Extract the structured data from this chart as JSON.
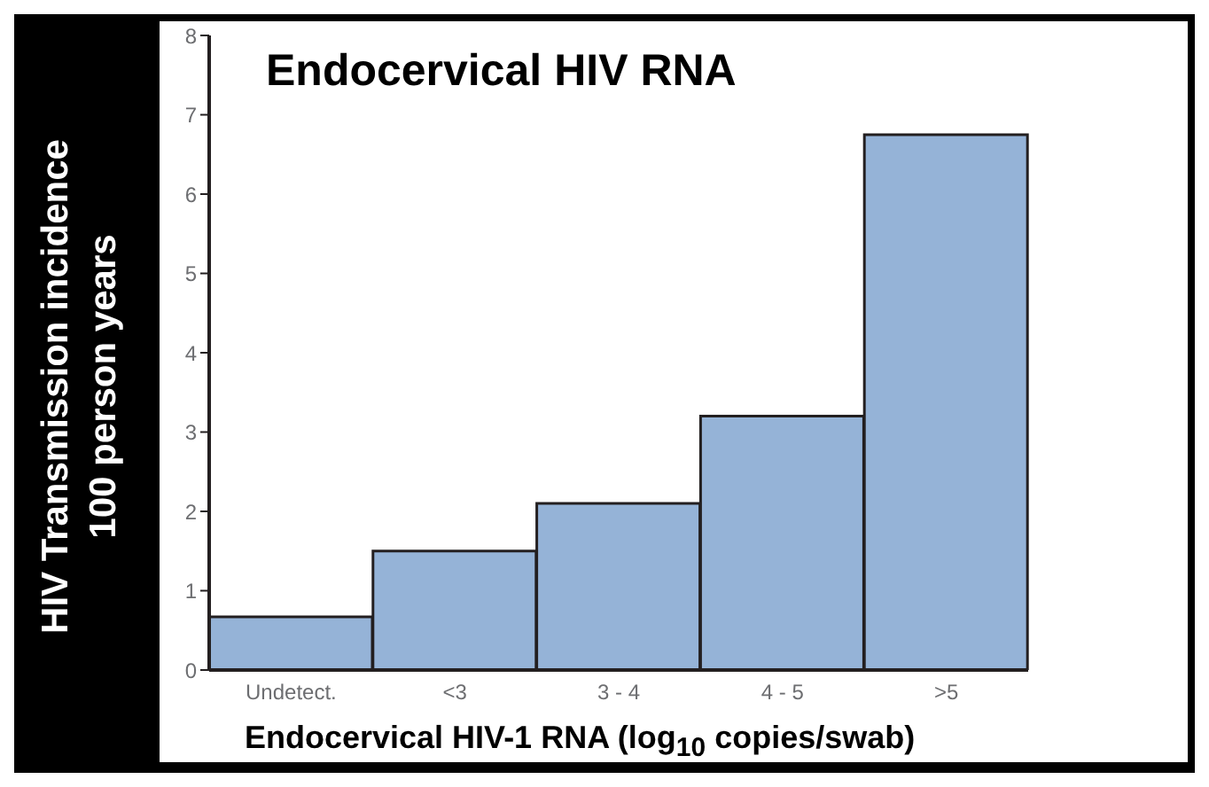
{
  "chart_data": {
    "type": "bar",
    "title": "Endocervical HIV RNA",
    "xlabel": "Endocervical HIV-1 RNA (log$_{10}$ copies/swab)",
    "ylabel": "HIV Transmission incidence\n100 person years",
    "categories": [
      "Undetect.",
      "<3",
      "3 - 4",
      "4 - 5",
      ">5"
    ],
    "values": [
      0.67,
      1.5,
      2.1,
      3.2,
      6.75
    ],
    "color": "#95b3d7",
    "ylim": [
      0,
      8
    ],
    "yticks": [
      0,
      1,
      2,
      3,
      4,
      5,
      6,
      7,
      8
    ],
    "grid": false,
    "legend": false
  }
}
